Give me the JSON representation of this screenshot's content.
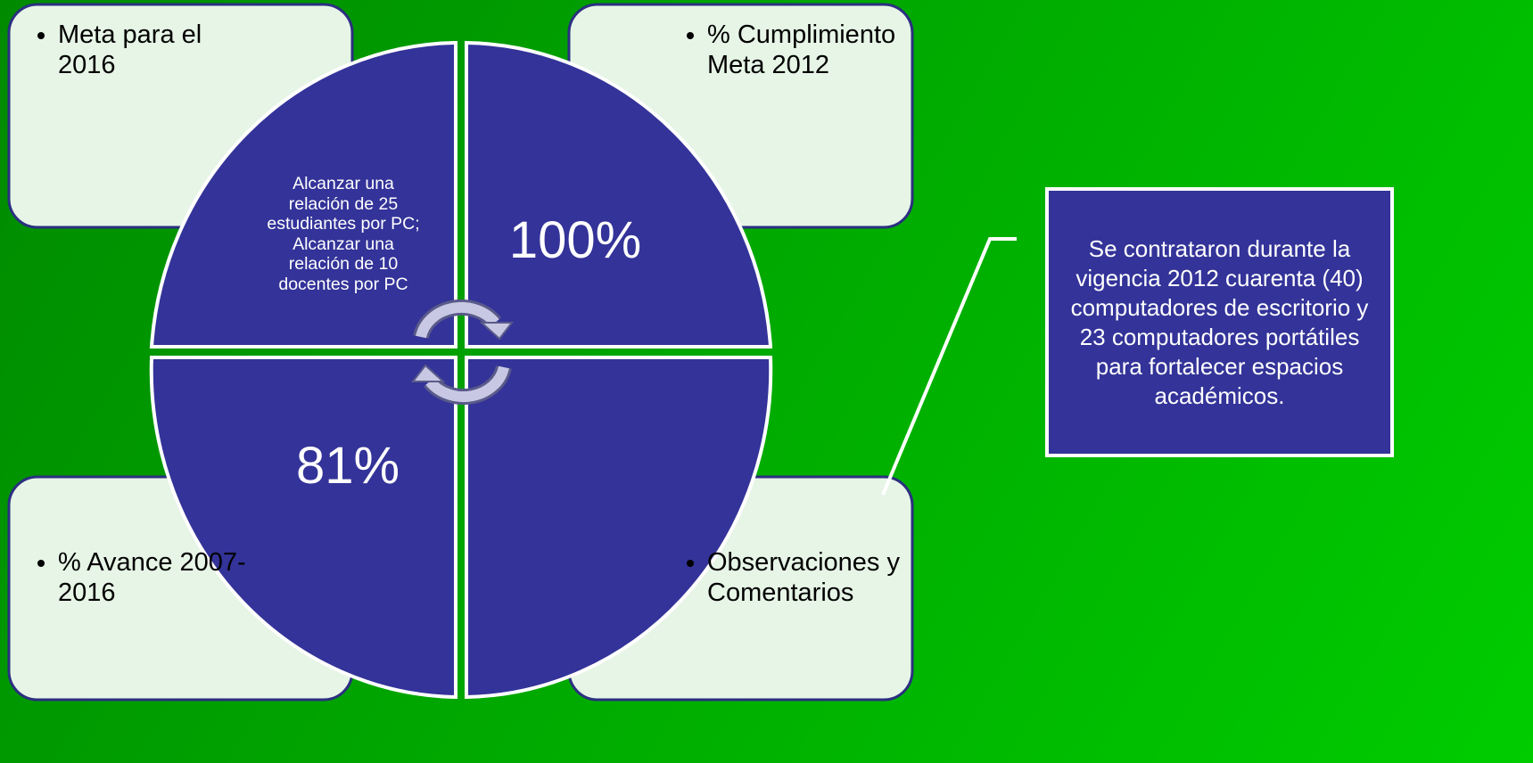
{
  "boxes": [
    {
      "label": "Meta para el 2016"
    },
    {
      "label": "% Cumplimiento Meta 2012"
    },
    {
      "label": "% Avance 2007-2016"
    },
    {
      "label": "Observaciones y Comentarios"
    }
  ],
  "quadrants": [
    {
      "text": "Alcanzar una relación de 25 estudiantes por PC; Alcanzar una relación de 10 docentes por PC"
    },
    {
      "text": "100%"
    },
    {
      "text": "81%"
    }
  ],
  "callout": {
    "text": "Se contrataron durante la vigencia 2012 cuarenta (40) computadores de escritorio y 23 computadores portátiles para fortalecer espacios académicos."
  }
}
